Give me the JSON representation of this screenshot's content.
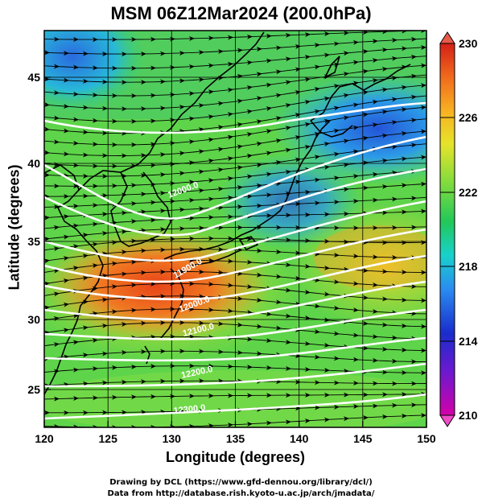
{
  "header": {
    "title": "MSM 06Z12Mar2024 (200.0hPa)"
  },
  "axes": {
    "xlabel": "Longitude (degrees)",
    "ylabel": "Latitude  (degrees)",
    "x_ticks": [
      "120",
      "125",
      "130",
      "135",
      "140",
      "145",
      "150"
    ],
    "y_ticks": [
      "25",
      "30",
      "35",
      "40",
      "45"
    ]
  },
  "colorbar": {
    "ticks": [
      "230",
      "226",
      "222",
      "218",
      "214",
      "210"
    ],
    "range": [
      210,
      230
    ]
  },
  "contour_labels": [
    "12000.0",
    "11900.0",
    "12000.0",
    "12100.0",
    "12200.0",
    "12300.0"
  ],
  "footer": {
    "line1": "Drawing by DCL (https://www.gfd-dennou.org/library/dcl/)",
    "line2": "Data from http://database.rish.kyoto-u.ac.jp/arch/jmadata/"
  },
  "colors": {
    "warm_core": "#ee4a18",
    "cold_core": "#2454d8",
    "mid": "#66d84a",
    "contours": "#ffffff"
  }
}
